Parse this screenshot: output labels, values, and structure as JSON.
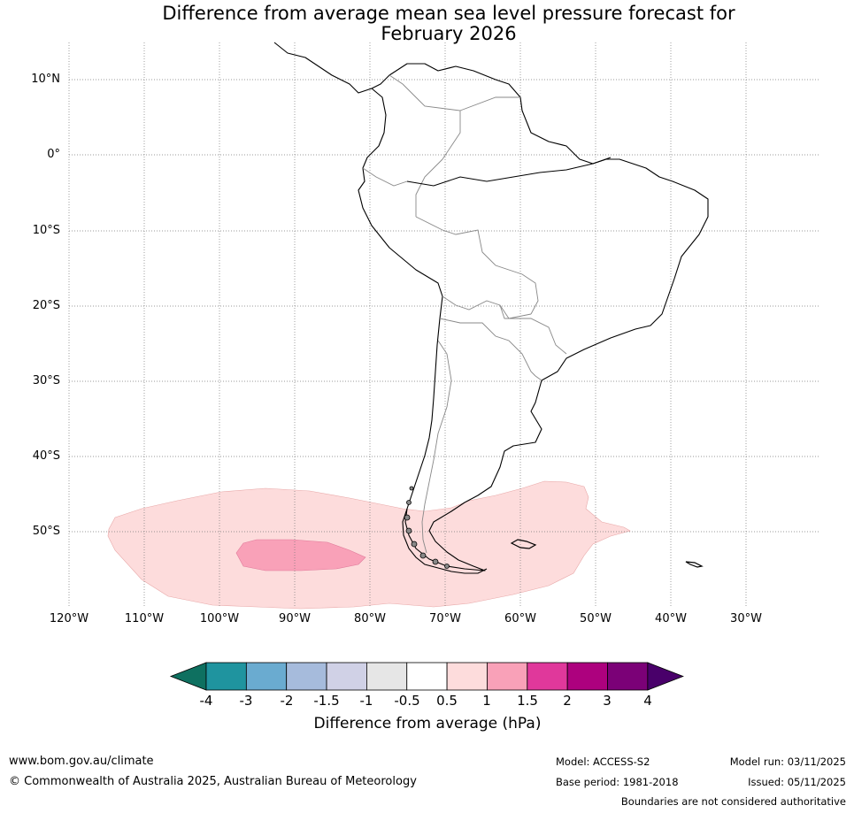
{
  "title_line1": "Difference from average mean sea level pressure forecast for",
  "title_line2": "February 2026",
  "lat_labels": [
    "10°N",
    "0°",
    "10°S",
    "20°S",
    "30°S",
    "40°S",
    "50°S"
  ],
  "lon_labels": [
    "120°W",
    "110°W",
    "100°W",
    "90°W",
    "80°W",
    "70°W",
    "60°W",
    "50°W",
    "40°W",
    "30°W"
  ],
  "anomaly_regions": [
    {
      "level": "0.5 to 1 hPa",
      "area": "Southeast Pacific and South Atlantic south of 44°S"
    },
    {
      "level": "1 to 1.5 hPa",
      "area": "Southeast Pacific near 53°S, 95°W–80°W"
    }
  ],
  "colorbar": {
    "title": "Difference from average (hPa)",
    "ticks": [
      "-4",
      "-3",
      "-2",
      "-1.5",
      "-1",
      "-0.5",
      "0.5",
      "1",
      "1.5",
      "2",
      "3",
      "4"
    ],
    "colors": [
      "#0e7060",
      "#1f949f",
      "#6aabd0",
      "#a6bbdc",
      "#d0d1e6",
      "#e6e6e6",
      "#ffffff",
      "#fddcdc",
      "#f9a1b8",
      "#e0389b",
      "#ad017e",
      "#7b0177",
      "#49006a"
    ]
  },
  "footer": {
    "website": "www.bom.gov.au/climate",
    "copyright": "© Commonwealth of Australia 2025, Australian Bureau of Meteorology",
    "model": "Model: ACCESS-S2",
    "base_period": "Base period: 1981-2018",
    "model_run": "Model run: 03/11/2025",
    "issued": "Issued: 05/11/2025",
    "disclaimer": "Boundaries are not considered authoritative"
  }
}
